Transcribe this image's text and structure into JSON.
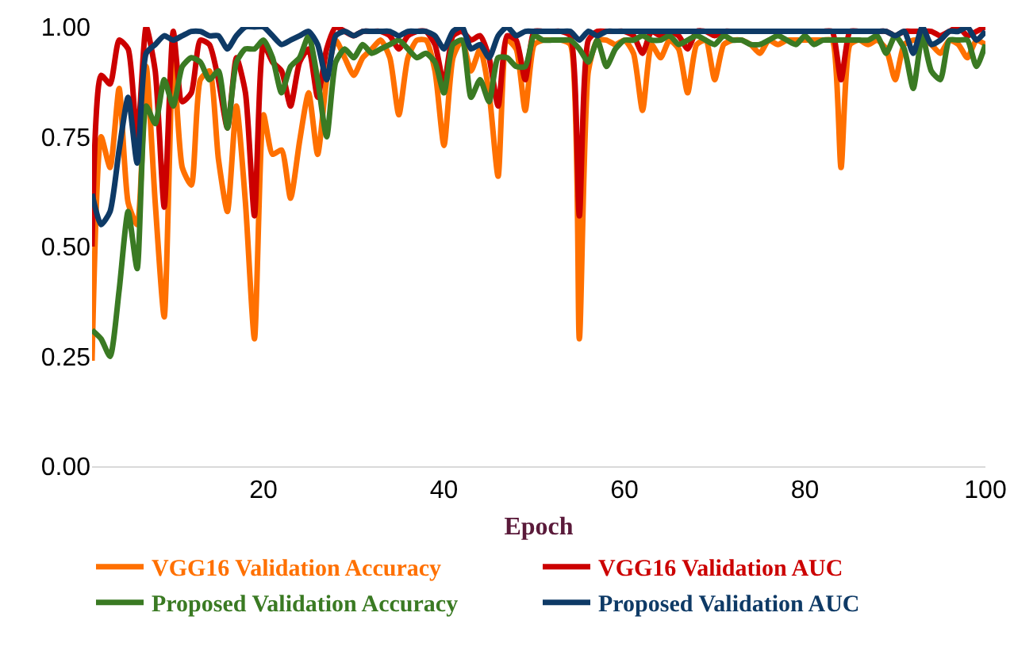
{
  "chart_data": {
    "type": "line",
    "xlabel": "Epoch",
    "x": [
      1,
      2,
      3,
      4,
      5,
      6,
      7,
      8,
      9,
      10,
      11,
      12,
      13,
      14,
      15,
      16,
      17,
      18,
      19,
      20,
      21,
      22,
      23,
      24,
      25,
      26,
      27,
      28,
      29,
      30,
      31,
      32,
      33,
      34,
      35,
      36,
      37,
      38,
      39,
      40,
      41,
      42,
      43,
      44,
      45,
      46,
      47,
      48,
      49,
      50,
      51,
      52,
      53,
      54,
      55,
      56,
      57,
      58,
      59,
      60,
      61,
      62,
      63,
      64,
      65,
      66,
      67,
      68,
      69,
      70,
      71,
      72,
      73,
      74,
      75,
      76,
      77,
      78,
      79,
      80,
      81,
      82,
      83,
      84,
      85,
      86,
      87,
      88,
      89,
      90,
      91,
      92,
      93,
      94,
      95,
      96,
      97,
      98,
      99,
      100
    ],
    "xlim": [
      1,
      100
    ],
    "xticks": [
      20,
      40,
      60,
      80,
      100
    ],
    "ylim": [
      0,
      1
    ],
    "yticks": [
      {
        "value": 0,
        "label": "0.00"
      },
      {
        "value": 0.25,
        "label": "0.25"
      },
      {
        "value": 0.5,
        "label": "0.50"
      },
      {
        "value": 0.75,
        "label": "0.75"
      },
      {
        "value": 1,
        "label": "1.00"
      }
    ],
    "grid": false,
    "legend": "bottom",
    "marker": "none",
    "line_style": "solid",
    "series": [
      {
        "name": "VGG16 Validation Accuracy",
        "color": "#ff7000",
        "values": [
          0.24,
          0.75,
          0.68,
          0.86,
          0.6,
          0.55,
          0.91,
          0.6,
          0.34,
          0.93,
          0.68,
          0.64,
          0.88,
          0.9,
          0.7,
          0.58,
          0.82,
          0.6,
          0.29,
          0.8,
          0.71,
          0.72,
          0.61,
          0.74,
          0.85,
          0.71,
          0.88,
          0.97,
          0.93,
          0.89,
          0.93,
          0.95,
          0.97,
          0.93,
          0.8,
          0.93,
          0.97,
          0.97,
          0.9,
          0.73,
          0.93,
          0.97,
          0.9,
          0.95,
          0.85,
          0.66,
          0.97,
          0.95,
          0.81,
          0.96,
          0.97,
          0.97,
          0.97,
          0.96,
          0.29,
          0.9,
          0.97,
          0.97,
          0.96,
          0.97,
          0.94,
          0.81,
          0.96,
          0.93,
          0.97,
          0.95,
          0.85,
          0.96,
          0.97,
          0.88,
          0.96,
          0.97,
          0.97,
          0.96,
          0.94,
          0.97,
          0.96,
          0.97,
          0.97,
          0.97,
          0.97,
          0.97,
          0.97,
          0.68,
          0.96,
          0.97,
          0.96,
          0.97,
          0.95,
          0.88,
          0.96,
          0.97,
          0.97,
          0.96,
          0.94,
          0.97,
          0.96,
          0.93,
          0.97,
          0.96
        ]
      },
      {
        "name": "VGG16 Validation AUC",
        "color": "#cc0000",
        "values": [
          0.5,
          0.89,
          0.87,
          0.97,
          0.95,
          0.74,
          1.0,
          0.9,
          0.59,
          0.99,
          0.83,
          0.85,
          0.97,
          0.96,
          0.88,
          0.77,
          0.93,
          0.85,
          0.57,
          0.96,
          0.92,
          0.9,
          0.82,
          0.92,
          0.95,
          0.84,
          0.95,
          1.0,
          0.99,
          0.98,
          0.99,
          0.99,
          0.99,
          0.98,
          0.95,
          0.98,
          0.99,
          0.99,
          0.96,
          0.87,
          0.98,
          0.99,
          0.97,
          0.98,
          0.93,
          0.82,
          0.98,
          0.97,
          0.88,
          0.99,
          0.99,
          0.99,
          0.99,
          0.98,
          0.57,
          0.97,
          0.99,
          0.99,
          0.99,
          0.99,
          0.98,
          0.94,
          0.99,
          0.98,
          0.99,
          0.98,
          0.95,
          0.99,
          0.99,
          0.98,
          0.99,
          0.99,
          0.99,
          0.99,
          0.99,
          0.99,
          0.99,
          0.99,
          0.99,
          0.99,
          0.99,
          0.99,
          0.99,
          0.88,
          0.99,
          0.99,
          0.99,
          0.99,
          0.99,
          0.98,
          0.99,
          0.99,
          0.99,
          0.99,
          0.98,
          0.99,
          1.0,
          0.98,
          0.99,
          1.0
        ]
      },
      {
        "name": "Proposed Validation Accuracy",
        "color": "#3a7a23",
        "values": [
          0.31,
          0.29,
          0.25,
          0.4,
          0.58,
          0.45,
          0.82,
          0.78,
          0.88,
          0.82,
          0.91,
          0.93,
          0.92,
          0.88,
          0.9,
          0.77,
          0.92,
          0.95,
          0.95,
          0.97,
          0.93,
          0.85,
          0.91,
          0.93,
          0.98,
          0.88,
          0.75,
          0.92,
          0.95,
          0.93,
          0.96,
          0.94,
          0.95,
          0.96,
          0.97,
          0.95,
          0.93,
          0.94,
          0.92,
          0.85,
          0.96,
          0.97,
          0.84,
          0.88,
          0.83,
          0.93,
          0.93,
          0.91,
          0.91,
          0.98,
          0.97,
          0.97,
          0.97,
          0.97,
          0.95,
          0.92,
          0.97,
          0.91,
          0.95,
          0.97,
          0.97,
          0.98,
          0.97,
          0.97,
          0.98,
          0.96,
          0.97,
          0.98,
          0.97,
          0.96,
          0.98,
          0.97,
          0.97,
          0.96,
          0.96,
          0.97,
          0.98,
          0.97,
          0.96,
          0.98,
          0.96,
          0.97,
          0.97,
          0.97,
          0.97,
          0.97,
          0.97,
          0.98,
          0.94,
          0.98,
          0.95,
          0.86,
          0.98,
          0.9,
          0.88,
          0.97,
          0.97,
          0.97,
          0.91,
          0.96
        ]
      },
      {
        "name": "Proposed Validation AUC",
        "color": "#0e3a66",
        "values": [
          0.62,
          0.55,
          0.58,
          0.72,
          0.84,
          0.69,
          0.94,
          0.96,
          0.98,
          0.97,
          0.98,
          0.99,
          0.99,
          0.98,
          0.98,
          0.95,
          0.98,
          1.0,
          1.0,
          1.0,
          0.98,
          0.96,
          0.97,
          0.98,
          0.99,
          0.96,
          0.88,
          0.98,
          0.99,
          0.98,
          0.99,
          0.99,
          0.99,
          0.99,
          0.98,
          0.99,
          0.99,
          0.99,
          0.98,
          0.95,
          0.99,
          1.0,
          0.95,
          0.96,
          0.93,
          0.98,
          1.0,
          0.98,
          0.99,
          0.99,
          0.99,
          0.99,
          0.99,
          0.99,
          0.97,
          0.99,
          0.98,
          0.99,
          0.99,
          0.99,
          0.99,
          0.99,
          0.99,
          0.99,
          0.99,
          0.99,
          0.99,
          0.99,
          0.99,
          0.99,
          0.99,
          0.99,
          0.99,
          0.99,
          0.99,
          0.99,
          0.99,
          0.99,
          0.99,
          0.99,
          0.99,
          0.99,
          0.99,
          0.99,
          0.99,
          0.99,
          0.99,
          0.99,
          0.99,
          0.98,
          0.99,
          0.94,
          1.0,
          0.96,
          0.97,
          0.99,
          0.99,
          1.0,
          0.97,
          0.99
        ]
      }
    ]
  }
}
